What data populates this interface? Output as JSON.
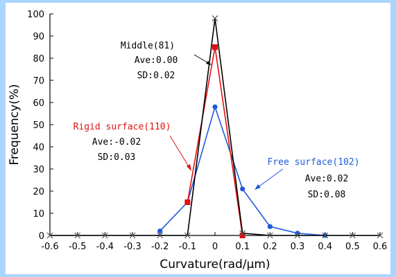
{
  "chart_data": {
    "type": "line",
    "xlabel": "Curvature(rad/μm)",
    "ylabel": "Frequency(%)",
    "xlim": [
      -0.6,
      0.6
    ],
    "ylim": [
      0,
      100
    ],
    "x_ticks": [
      "-0.6",
      "-0.5",
      "-0.4",
      "-0.3",
      "-0.2",
      "-0.1",
      "0",
      "0.1",
      "0.2",
      "0.3",
      "0.4",
      "0.5",
      "0.6"
    ],
    "y_ticks": [
      "0",
      "10",
      "20",
      "30",
      "40",
      "50",
      "60",
      "70",
      "80",
      "90",
      "100"
    ],
    "grid": false,
    "series": [
      {
        "name": "Free surface(102)",
        "color": "#1e5adc",
        "marker": "circle",
        "x": [
          -0.2,
          -0.1,
          0,
          0.1,
          0.2,
          0.3,
          0.4
        ],
        "y": [
          2,
          15,
          58,
          21,
          4,
          1,
          0
        ]
      },
      {
        "name": "Rigid surface(110)",
        "color": "#e01010",
        "marker": "square",
        "x": [
          -0.1,
          0,
          0.1
        ],
        "y": [
          15,
          85,
          0
        ]
      },
      {
        "name": "Middle(81)",
        "color": "#000000",
        "marker": "x",
        "x": [
          -0.6,
          -0.5,
          -0.4,
          -0.3,
          -0.2,
          -0.1,
          0,
          0.1,
          0.2,
          0.3,
          0.4,
          0.5,
          0.6
        ],
        "y": [
          0,
          0,
          0,
          0,
          0,
          0,
          98,
          1,
          0,
          0,
          0,
          0,
          0
        ]
      }
    ],
    "annotations": [
      {
        "series": "Middle(81)",
        "lines": [
          "Middle(81)",
          "Ave:0.00",
          "SD:0.02"
        ],
        "color": "#000000"
      },
      {
        "series": "Rigid surface(110)",
        "lines": [
          "Rigid surface(110)",
          "Ave:-0.02",
          "SD:0.03"
        ],
        "color": "#e01010",
        "title_color": "#e01010",
        "body_color": "#000000"
      },
      {
        "series": "Free surface(102)",
        "lines": [
          "Free surface(102)",
          "Ave:0.02",
          "SD:0.08"
        ],
        "title_color": "#1e5adc",
        "body_color": "#000000"
      }
    ]
  }
}
